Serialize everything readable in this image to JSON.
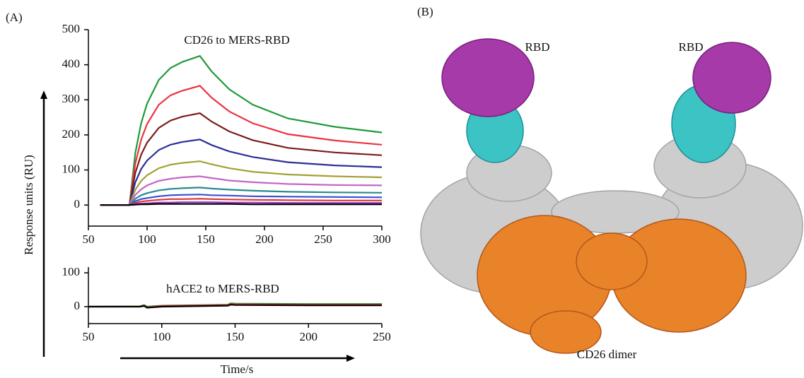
{
  "figure": {
    "panel_a_label": "(A)",
    "panel_b_label": "(B)",
    "y_label": "Response units (RU)",
    "x_label": "Time/s",
    "structure_labels": [
      "RBD",
      "RBD",
      "CD26 dimer"
    ]
  },
  "chart_data": [
    {
      "type": "line",
      "title": "CD26 to MERS-RBD",
      "x": [
        60,
        85,
        90,
        95,
        100,
        110,
        120,
        130,
        145,
        155,
        170,
        190,
        220,
        260,
        300
      ],
      "xlim": [
        50,
        300
      ],
      "xticks": [
        50,
        100,
        150,
        200,
        250,
        300
      ],
      "ylim": [
        -60,
        500
      ],
      "yticks": [
        0,
        100,
        200,
        300,
        400,
        500
      ],
      "series": [
        {
          "color": "#1f9a3a",
          "values": [
            0,
            0,
            149,
            234,
            289,
            357,
            391,
            408,
            425,
            381,
            330,
            286,
            247,
            223,
            207
          ]
        },
        {
          "color": "#ea3340",
          "values": [
            0,
            0,
            119,
            187,
            231,
            286,
            313,
            326,
            340,
            306,
            267,
            233,
            202,
            184,
            172
          ]
        },
        {
          "color": "#7a1c1c",
          "values": [
            0,
            0,
            92,
            144,
            178,
            220,
            241,
            252,
            262,
            238,
            210,
            185,
            163,
            150,
            142
          ]
        },
        {
          "color": "#2b2f98",
          "values": [
            0,
            0,
            65,
            103,
            127,
            157,
            172,
            180,
            187,
            171,
            153,
            137,
            122,
            113,
            108
          ]
        },
        {
          "color": "#a3a034",
          "values": [
            0,
            0,
            44,
            69,
            85,
            105,
            115,
            120,
            125,
            116,
            105,
            95,
            87,
            82,
            79
          ]
        },
        {
          "color": "#c466c8",
          "values": [
            0,
            0,
            29,
            45,
            56,
            69,
            75,
            79,
            82,
            77,
            70,
            65,
            60,
            57,
            56
          ]
        },
        {
          "color": "#2a8a8c",
          "values": [
            0,
            0,
            18,
            28,
            34,
            42,
            46,
            48,
            50,
            47,
            44,
            41,
            38,
            36,
            35
          ]
        },
        {
          "color": "#3450d4",
          "values": [
            0,
            0,
            11,
            17,
            20,
            25,
            28,
            29,
            30,
            28,
            27,
            25,
            24,
            23,
            22
          ]
        },
        {
          "color": "#e03434",
          "values": [
            0,
            0,
            6,
            10,
            12,
            15,
            17,
            17,
            18,
            17,
            16,
            15,
            14,
            13,
            13
          ]
        },
        {
          "color": "#9234c4",
          "values": [
            0,
            0,
            3,
            4,
            5,
            7,
            7,
            8,
            8,
            8,
            7,
            7,
            6,
            6,
            6
          ]
        },
        {
          "color": "#000000",
          "values": [
            0,
            0,
            1,
            2,
            2,
            3,
            3,
            3,
            3,
            3,
            3,
            2,
            2,
            2,
            2
          ]
        }
      ]
    },
    {
      "type": "line",
      "title": "hACE2 to MERS-RBD",
      "x": [
        50,
        85,
        88,
        90,
        100,
        145,
        147,
        150,
        200,
        250
      ],
      "xlim": [
        50,
        250
      ],
      "xticks": [
        50,
        100,
        150,
        200,
        250
      ],
      "ylim": [
        -50,
        117
      ],
      "yticks": [
        0,
        100
      ],
      "series": [
        {
          "color": "#1f9a3a",
          "values": [
            0,
            1,
            5,
            0,
            3,
            6,
            10,
            9,
            8,
            8
          ]
        },
        {
          "color": "#ea3340",
          "values": [
            0,
            0,
            3,
            -2,
            2,
            5,
            8,
            7,
            6,
            6
          ]
        },
        {
          "color": "#000000",
          "values": [
            0,
            0,
            2,
            -3,
            0,
            3,
            6,
            5,
            4,
            4
          ]
        }
      ]
    }
  ]
}
